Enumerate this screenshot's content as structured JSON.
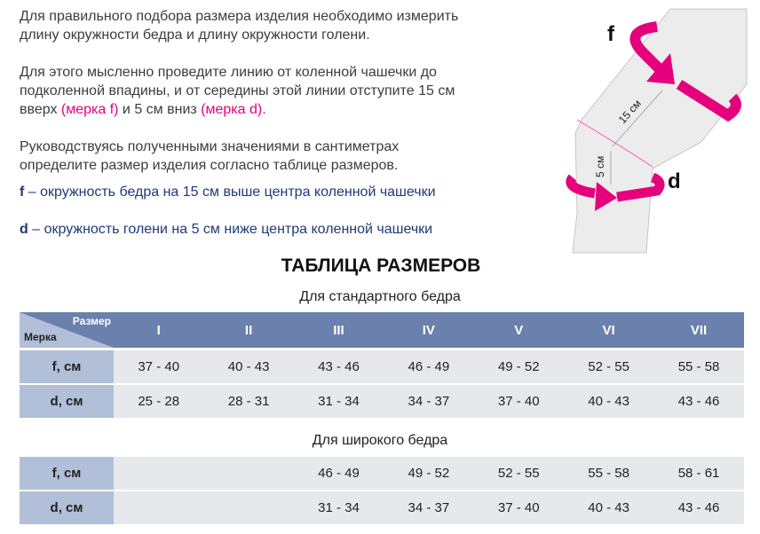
{
  "intro": {
    "p1": "Для правильного подбора размера изделия необходимо измерить длину окружности бедра и длину окружности голени.",
    "p2a": "Для этого мысленно проведите линию от коленной чашечки до подколенной впадины, и от середины этой линии отступите 15 см вверх ",
    "p2f": "(мерка f)",
    "p2b": " и 5 см вниз ",
    "p2d": "(мерка d).",
    "p3": "Руководствуясь полученными значениями в сантиметрах определите размер изделия согласно таблице размеров."
  },
  "definitions": {
    "f_key": "f",
    "f_text": " – окружность бедра на 15 см выше центра коленной чашечки",
    "d_key": "d",
    "d_text": " – окружность голени на 5 см ниже центра коленной чашечки"
  },
  "diagram": {
    "f_label": "f",
    "d_label": "d",
    "f_dist": "15 см",
    "d_dist": "5 см",
    "accent": "#e5007e"
  },
  "table": {
    "title": "ТАБЛИЦА РАЗМЕРОВ",
    "standard_caption": "Для стандартного бедра",
    "wide_caption": "Для широкого бедра",
    "corner_size": "Размер",
    "corner_measure": "Мерка",
    "sizes": [
      "I",
      "II",
      "III",
      "IV",
      "V",
      "VI",
      "VII"
    ],
    "standard": [
      {
        "label": "f, см",
        "values": [
          "37 - 40",
          "40 - 43",
          "43 - 46",
          "46 - 49",
          "49 - 52",
          "52 - 55",
          "55 - 58"
        ]
      },
      {
        "label": "d, см",
        "values": [
          "25 - 28",
          "28 - 31",
          "31 - 34",
          "34 - 37",
          "37 - 40",
          "40 - 43",
          "43 - 46"
        ]
      }
    ],
    "wide": [
      {
        "label": "f, см",
        "values": [
          "",
          "",
          "46 - 49",
          "49 - 52",
          "52 - 55",
          "55 - 58",
          "58 - 61"
        ]
      },
      {
        "label": "d, см",
        "values": [
          "",
          "",
          "31 - 34",
          "34 - 37",
          "37 - 40",
          "40 - 43",
          "43 - 46"
        ]
      }
    ]
  }
}
